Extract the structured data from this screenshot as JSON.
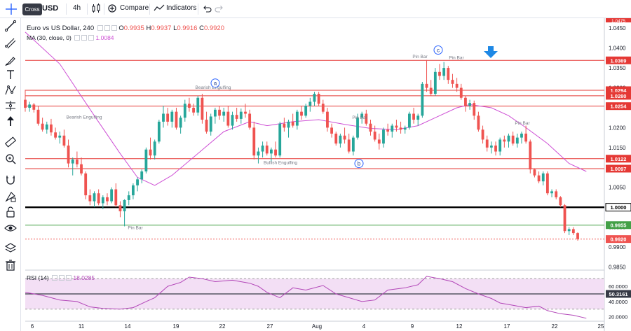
{
  "toolbar": {
    "symbol": "USD",
    "tooltip": "Cross",
    "interval": "4h",
    "compare_label": "Compare",
    "indicators_label": "Indicators"
  },
  "legend": {
    "title": "Euro vs US Dollar, 240",
    "o_label": "O",
    "o_value": "0.9935",
    "h_label": "H",
    "h_value": "0.9937",
    "l_label": "L",
    "l_value": "0.9916",
    "c_label": "C",
    "c_value": "0.9920",
    "ma_label": "MA (30, close, 0)",
    "ma_value": "1.0084",
    "rsi_label": "RSI (14)",
    "rsi_value": "18.0285"
  },
  "colors": {
    "up": "#26a69a",
    "down": "#ef5350",
    "ma": "#ce50d5",
    "rsi": "#b246b8",
    "resistance": "#e53935",
    "support": "#000000",
    "green_line": "#43a047",
    "arrow": "#1e88e5"
  },
  "left_tools": [
    "cross-icon",
    "trend-line-icon",
    "fib-icon",
    "brush-icon",
    "text-icon",
    "pattern-icon",
    "measure-icon",
    "arrow-up-icon",
    "ruler-icon",
    "zoom-icon",
    "magnet-icon",
    "lock-drawing-icon",
    "unlock-icon",
    "eye-icon",
    "layers-icon",
    "trash-icon"
  ],
  "chart_data": {
    "type": "candlestick",
    "title": "Euro vs US Dollar, 240",
    "price_axis": {
      "ticks": [
        "1.0450",
        "1.0400",
        "1.0350",
        "1.0300",
        "1.0250",
        "1.0200",
        "1.0150",
        "1.0100",
        "1.0050",
        "1.0000",
        "0.9950",
        "0.9900",
        "0.9850"
      ],
      "range": [
        0.9842,
        1.0475
      ]
    },
    "time_axis": {
      "labels": [
        "6",
        "11",
        "14",
        "19",
        "22",
        "27",
        "Aug",
        "4",
        "9",
        "12",
        "17",
        "22",
        "25"
      ]
    },
    "levels": [
      {
        "value": 1.0369,
        "label": "1.0369",
        "kind": "resistance"
      },
      {
        "value": 1.0294,
        "label": "1.0294",
        "kind": "resistance"
      },
      {
        "value": 1.028,
        "label": "1.0280",
        "kind": "resistance"
      },
      {
        "value": 1.0254,
        "label": "1.0254",
        "kind": "resistance"
      },
      {
        "value": 1.0122,
        "label": "1.0122",
        "kind": "resistance"
      },
      {
        "value": 1.0097,
        "label": "1.0097",
        "kind": "resistance"
      },
      {
        "value": 1.0,
        "label": "1.0000",
        "kind": "support"
      },
      {
        "value": 0.9955,
        "label": "0.9955",
        "kind": "green"
      },
      {
        "value": 0.992,
        "label": "0.9920",
        "kind": "current"
      }
    ],
    "top_partial_label": "1.0475",
    "annotations": [
      {
        "text": "Bearish Engulfing",
        "price": 1.0223
      },
      {
        "text": "Bearish Engulfing",
        "price": 1.0297
      },
      {
        "text": "Bullish Engulfing",
        "price": 1.0108
      },
      {
        "text": "Pin Bar",
        "price": 0.9945
      },
      {
        "text": "Pin Bar",
        "price": 1.0222
      },
      {
        "text": "Pin Bar",
        "price": 1.0375
      },
      {
        "text": "Pin Bar",
        "price": 1.0372
      },
      {
        "text": "Pin Bar",
        "price": 1.0208
      }
    ],
    "markers": [
      {
        "letter": "a",
        "price": 1.0312
      },
      {
        "letter": "b",
        "price": 1.011
      },
      {
        "letter": "c",
        "price": 1.0395
      }
    ],
    "candles": [
      [
        1.027,
        1.0295,
        1.024,
        1.025
      ],
      [
        1.025,
        1.0265,
        1.024,
        1.0258
      ],
      [
        1.0258,
        1.0262,
        1.0238,
        1.0245
      ],
      [
        1.0245,
        1.0255,
        1.0205,
        1.021
      ],
      [
        1.021,
        1.0225,
        1.019,
        1.0195
      ],
      [
        1.0195,
        1.0215,
        1.0185,
        1.0208
      ],
      [
        1.0208,
        1.0222,
        1.018,
        1.0188
      ],
      [
        1.0188,
        1.02,
        1.017,
        1.0175
      ],
      [
        1.0175,
        1.019,
        1.016,
        1.018
      ],
      [
        1.018,
        1.0195,
        1.015,
        1.0155
      ],
      [
        1.0155,
        1.017,
        1.01,
        1.011
      ],
      [
        1.011,
        1.0125,
        1.008,
        1.012
      ],
      [
        1.012,
        1.014,
        1.01,
        1.0108
      ],
      [
        1.0108,
        1.0125,
        1.008,
        1.0085
      ],
      [
        1.0085,
        1.009,
        1.002,
        1.003
      ],
      [
        1.003,
        1.0045,
        1.0005,
        1.0015
      ],
      [
        1.0015,
        1.004,
        1.0,
        1.0035
      ],
      [
        1.0035,
        1.0045,
        1.0005,
        1.001
      ],
      [
        1.001,
        1.003,
        0.9995,
        1.0025
      ],
      [
        1.0025,
        1.0035,
        1.0005,
        1.0015
      ],
      [
        1.0015,
        1.005,
        1.001,
        1.0045
      ],
      [
        1.0045,
        1.006,
        1.0,
        1.0005
      ],
      [
        1.0005,
        1.0015,
        0.9975,
        0.999
      ],
      [
        0.999,
        1.002,
        0.9952,
        1.0018
      ],
      [
        1.0018,
        1.004,
        1.0005,
        1.003
      ],
      [
        1.003,
        1.006,
        1.002,
        1.0055
      ],
      [
        1.0055,
        1.0075,
        1.004,
        1.007
      ],
      [
        1.007,
        1.0095,
        1.006,
        1.009
      ],
      [
        1.009,
        1.015,
        1.0085,
        1.0145
      ],
      [
        1.0145,
        1.0175,
        1.012,
        1.013
      ],
      [
        1.013,
        1.017,
        1.012,
        1.0165
      ],
      [
        1.0165,
        1.022,
        1.016,
        1.0215
      ],
      [
        1.0215,
        1.0255,
        1.02,
        1.0235
      ],
      [
        1.0235,
        1.025,
        1.0205,
        1.0215
      ],
      [
        1.0215,
        1.0245,
        1.02,
        1.024
      ],
      [
        1.024,
        1.025,
        1.0195,
        1.02
      ],
      [
        1.02,
        1.023,
        1.0185,
        1.0225
      ],
      [
        1.0225,
        1.027,
        1.0215,
        1.026
      ],
      [
        1.026,
        1.0275,
        1.024,
        1.025
      ],
      [
        1.025,
        1.026,
        1.023,
        1.0238
      ],
      [
        1.0238,
        1.028,
        1.023,
        1.0275
      ],
      [
        1.0275,
        1.0285,
        1.021,
        1.022
      ],
      [
        1.022,
        1.024,
        1.0185,
        1.019
      ],
      [
        1.019,
        1.0235,
        1.018,
        1.0228
      ],
      [
        1.0228,
        1.025,
        1.021,
        1.0245
      ],
      [
        1.0245,
        1.0255,
        1.022,
        1.023
      ],
      [
        1.023,
        1.025,
        1.0215,
        1.024
      ],
      [
        1.024,
        1.0255,
        1.02,
        1.0205
      ],
      [
        1.0205,
        1.024,
        1.0195,
        1.0232
      ],
      [
        1.0232,
        1.025,
        1.0215,
        1.0222
      ],
      [
        1.0222,
        1.0248,
        1.021,
        1.024
      ],
      [
        1.024,
        1.026,
        1.0225,
        1.0235
      ],
      [
        1.0235,
        1.0245,
        1.0195,
        1.02
      ],
      [
        1.02,
        1.0215,
        1.012,
        1.013
      ],
      [
        1.013,
        1.015,
        1.011,
        1.014
      ],
      [
        1.014,
        1.0165,
        1.0125,
        1.0155
      ],
      [
        1.0155,
        1.0165,
        1.013,
        1.0135
      ],
      [
        1.0135,
        1.015,
        1.0115,
        1.0145
      ],
      [
        1.0145,
        1.0165,
        1.0125,
        1.013
      ],
      [
        1.013,
        1.0215,
        1.0125,
        1.021
      ],
      [
        1.021,
        1.0225,
        1.019,
        1.02
      ],
      [
        1.02,
        1.022,
        1.0175,
        1.0215
      ],
      [
        1.0215,
        1.0235,
        1.02,
        1.0205
      ],
      [
        1.0205,
        1.0245,
        1.0195,
        1.024
      ],
      [
        1.024,
        1.0255,
        1.022,
        1.023
      ],
      [
        1.023,
        1.026,
        1.0225,
        1.0255
      ],
      [
        1.0255,
        1.0275,
        1.024,
        1.0265
      ],
      [
        1.0265,
        1.029,
        1.0255,
        1.0285
      ],
      [
        1.0285,
        1.029,
        1.0255,
        1.026
      ],
      [
        1.026,
        1.027,
        1.0235,
        1.024
      ],
      [
        1.024,
        1.025,
        1.019,
        1.02
      ],
      [
        1.02,
        1.021,
        1.0175,
        1.0185
      ],
      [
        1.0185,
        1.019,
        1.0155,
        1.016
      ],
      [
        1.016,
        1.0185,
        1.015,
        1.018
      ],
      [
        1.018,
        1.02,
        1.016,
        1.017
      ],
      [
        1.017,
        1.0185,
        1.0135,
        1.014
      ],
      [
        1.014,
        1.018,
        1.013,
        1.0175
      ],
      [
        1.0175,
        1.0235,
        1.017,
        1.0225
      ],
      [
        1.0225,
        1.024,
        1.021,
        1.0235
      ],
      [
        1.0235,
        1.0245,
        1.0205,
        1.021
      ],
      [
        1.021,
        1.022,
        1.018,
        1.019
      ],
      [
        1.019,
        1.0205,
        1.0165,
        1.017
      ],
      [
        1.017,
        1.0185,
        1.0145,
        1.016
      ],
      [
        1.016,
        1.02,
        1.015,
        1.0195
      ],
      [
        1.0195,
        1.021,
        1.018,
        1.019
      ],
      [
        1.019,
        1.021,
        1.0175,
        1.0205
      ],
      [
        1.0205,
        1.022,
        1.019,
        1.02
      ],
      [
        1.02,
        1.0215,
        1.0185,
        1.0195
      ],
      [
        1.0195,
        1.0205,
        1.0185,
        1.02
      ],
      [
        1.02,
        1.024,
        1.0195,
        1.0235
      ],
      [
        1.0235,
        1.025,
        1.021,
        1.022
      ],
      [
        1.022,
        1.0235,
        1.0205,
        1.023
      ],
      [
        1.023,
        1.0315,
        1.0225,
        1.031
      ],
      [
        1.031,
        1.037,
        1.029,
        1.03
      ],
      [
        1.03,
        1.032,
        1.028,
        1.0285
      ],
      [
        1.0285,
        1.035,
        1.028,
        1.034
      ],
      [
        1.034,
        1.036,
        1.032,
        1.033
      ],
      [
        1.033,
        1.0365,
        1.032,
        1.035
      ],
      [
        1.035,
        1.0355,
        1.031,
        1.032
      ],
      [
        1.032,
        1.0335,
        1.03,
        1.031
      ],
      [
        1.031,
        1.0325,
        1.029,
        1.03
      ],
      [
        1.03,
        1.031,
        1.027,
        1.0275
      ],
      [
        1.0275,
        1.028,
        1.024,
        1.0255
      ],
      [
        1.0255,
        1.027,
        1.0245,
        1.0262
      ],
      [
        1.0262,
        1.0268,
        1.022,
        1.023
      ],
      [
        1.023,
        1.024,
        1.019,
        1.0195
      ],
      [
        1.0195,
        1.0205,
        1.016,
        1.017
      ],
      [
        1.017,
        1.018,
        1.014,
        1.015
      ],
      [
        1.015,
        1.0165,
        1.0135,
        1.0155
      ],
      [
        1.0155,
        1.0165,
        1.013,
        1.014
      ],
      [
        1.014,
        1.0175,
        1.013,
        1.017
      ],
      [
        1.017,
        1.018,
        1.015,
        1.0165
      ],
      [
        1.0165,
        1.0185,
        1.015,
        1.018
      ],
      [
        1.018,
        1.019,
        1.0155,
        1.016
      ],
      [
        1.016,
        1.0185,
        1.015,
        1.0175
      ],
      [
        1.0175,
        1.019,
        1.016,
        1.0185
      ],
      [
        1.0185,
        1.0205,
        1.016,
        1.0165
      ],
      [
        1.0165,
        1.017,
        1.0085,
        1.0095
      ],
      [
        1.0095,
        1.0098,
        1.0075,
        1.008
      ],
      [
        1.008,
        1.009,
        1.006,
        1.0065
      ],
      [
        1.0065,
        1.009,
        1.0055,
        1.0085
      ],
      [
        1.0085,
        1.009,
        1.003,
        1.0035
      ],
      [
        1.0035,
        1.0045,
        1.0025,
        1.004
      ],
      [
        1.004,
        1.0045,
        1.002,
        1.0025
      ],
      [
        1.0025,
        1.0028,
        1.0,
        1.0005
      ],
      [
        1.0005,
        1.0008,
        0.9935,
        0.994
      ],
      [
        0.994,
        0.995,
        0.993,
        0.9945
      ],
      [
        0.9945,
        0.995,
        0.993,
        0.9935
      ],
      [
        0.9935,
        0.9937,
        0.9916,
        0.992
      ]
    ],
    "ma": {
      "label": "MA (30, close, 0)",
      "last_value": 1.0084,
      "path": [
        [
          0,
          1.044
        ],
        [
          8,
          1.036
        ],
        [
          16,
          1.023
        ],
        [
          22,
          1.0135
        ],
        [
          26,
          1.0075
        ],
        [
          30,
          1.0055
        ],
        [
          34,
          1.008
        ],
        [
          40,
          1.0135
        ],
        [
          46,
          1.019
        ],
        [
          52,
          1.0215
        ],
        [
          56,
          1.0205
        ],
        [
          62,
          1.0215
        ],
        [
          68,
          1.022
        ],
        [
          74,
          1.0208
        ],
        [
          80,
          1.0198
        ],
        [
          86,
          1.0195
        ],
        [
          91,
          1.0205
        ],
        [
          95,
          1.0225
        ],
        [
          100,
          1.025
        ],
        [
          103,
          1.0258
        ],
        [
          108,
          1.025
        ],
        [
          112,
          1.023
        ],
        [
          116,
          1.02
        ],
        [
          121,
          1.016
        ],
        [
          126,
          1.011
        ],
        [
          130,
          1.009
        ]
      ]
    },
    "rsi": {
      "label": "RSI (14)",
      "last_value": 18.0285,
      "axis_ticks": [
        "60.0000",
        "40.0000",
        "20.0000"
      ],
      "band_upper": 70,
      "band_lower": 30,
      "mid": 50,
      "mid_label": "50.3161",
      "path": [
        [
          0,
          52
        ],
        [
          4,
          48
        ],
        [
          8,
          42
        ],
        [
          12,
          40
        ],
        [
          15,
          33
        ],
        [
          18,
          31
        ],
        [
          22,
          30
        ],
        [
          25,
          32
        ],
        [
          28,
          40
        ],
        [
          30,
          45
        ],
        [
          33,
          60
        ],
        [
          36,
          65
        ],
        [
          38,
          72
        ],
        [
          41,
          70
        ],
        [
          44,
          66
        ],
        [
          48,
          68
        ],
        [
          52,
          64
        ],
        [
          54,
          60
        ],
        [
          56,
          52
        ],
        [
          59,
          45
        ],
        [
          62,
          58
        ],
        [
          65,
          55
        ],
        [
          69,
          61
        ],
        [
          72,
          50
        ],
        [
          75,
          45
        ],
        [
          78,
          40
        ],
        [
          81,
          42
        ],
        [
          84,
          55
        ],
        [
          88,
          58
        ],
        [
          91,
          62
        ],
        [
          93,
          73
        ],
        [
          96,
          70
        ],
        [
          99,
          66
        ],
        [
          102,
          57
        ],
        [
          105,
          50
        ],
        [
          108,
          44
        ],
        [
          110,
          38
        ],
        [
          113,
          35
        ],
        [
          116,
          32
        ],
        [
          119,
          34
        ],
        [
          121,
          28
        ],
        [
          124,
          24
        ],
        [
          127,
          22
        ],
        [
          130,
          18
        ]
      ]
    }
  }
}
